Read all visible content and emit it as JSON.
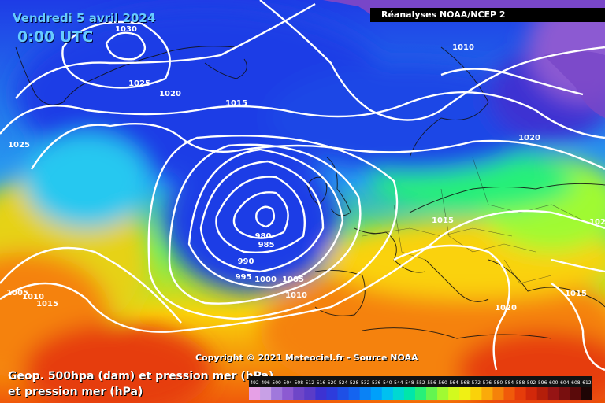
{
  "header": {
    "date": "Vendredi 5 avril 2024",
    "time": "0:00 UTC",
    "source": "Réanalyses NOAA/NCEP 2"
  },
  "footer": {
    "copyright": "Copyright © 2021 Meteociel.fr - Source NOAA",
    "legend_line1": "Geop. 500hpa (dam) et pression mer (hPa)",
    "legend_line2": "et pression mer (hPa)"
  },
  "colorbar": {
    "ticks": [
      "492",
      "496",
      "500",
      "504",
      "508",
      "512",
      "516",
      "520",
      "524",
      "528",
      "532",
      "536",
      "540",
      "544",
      "548",
      "552",
      "556",
      "560",
      "564",
      "568",
      "572",
      "576",
      "580",
      "584",
      "588",
      "592",
      "596",
      "600",
      "604",
      "608",
      "612"
    ],
    "colors": [
      "#e6a0e6",
      "#c8a0e6",
      "#a078dc",
      "#8c5ad2",
      "#6e46c8",
      "#5a3cc8",
      "#3c32d2",
      "#2d3cdc",
      "#1e50e6",
      "#1464f0",
      "#0a82f5",
      "#00a0fa",
      "#00c0f0",
      "#00d8d2",
      "#00e6aa",
      "#28f078",
      "#64f550",
      "#a0fa32",
      "#d2fa1e",
      "#f0f014",
      "#fad20a",
      "#faaa0a",
      "#f5820a",
      "#f05a0a",
      "#e63c0a",
      "#d2280a",
      "#b41e0a",
      "#961414",
      "#780f0f",
      "#5a0a0a",
      "#1e0505"
    ]
  },
  "isobars": [
    {
      "value": "1030"
    },
    {
      "value": "1025"
    },
    {
      "value": "1020"
    },
    {
      "value": "1015"
    },
    {
      "value": "1010"
    },
    {
      "value": "1020"
    },
    {
      "value": "1025"
    },
    {
      "value": "1015"
    },
    {
      "value": "1020"
    },
    {
      "value": "980"
    },
    {
      "value": "985"
    },
    {
      "value": "990"
    },
    {
      "value": "995"
    },
    {
      "value": "1000"
    },
    {
      "value": "1005"
    },
    {
      "value": "1010"
    },
    {
      "value": "1010"
    },
    {
      "value": "1015"
    },
    {
      "value": "1005"
    },
    {
      "value": "1020"
    },
    {
      "value": "1015"
    }
  ]
}
